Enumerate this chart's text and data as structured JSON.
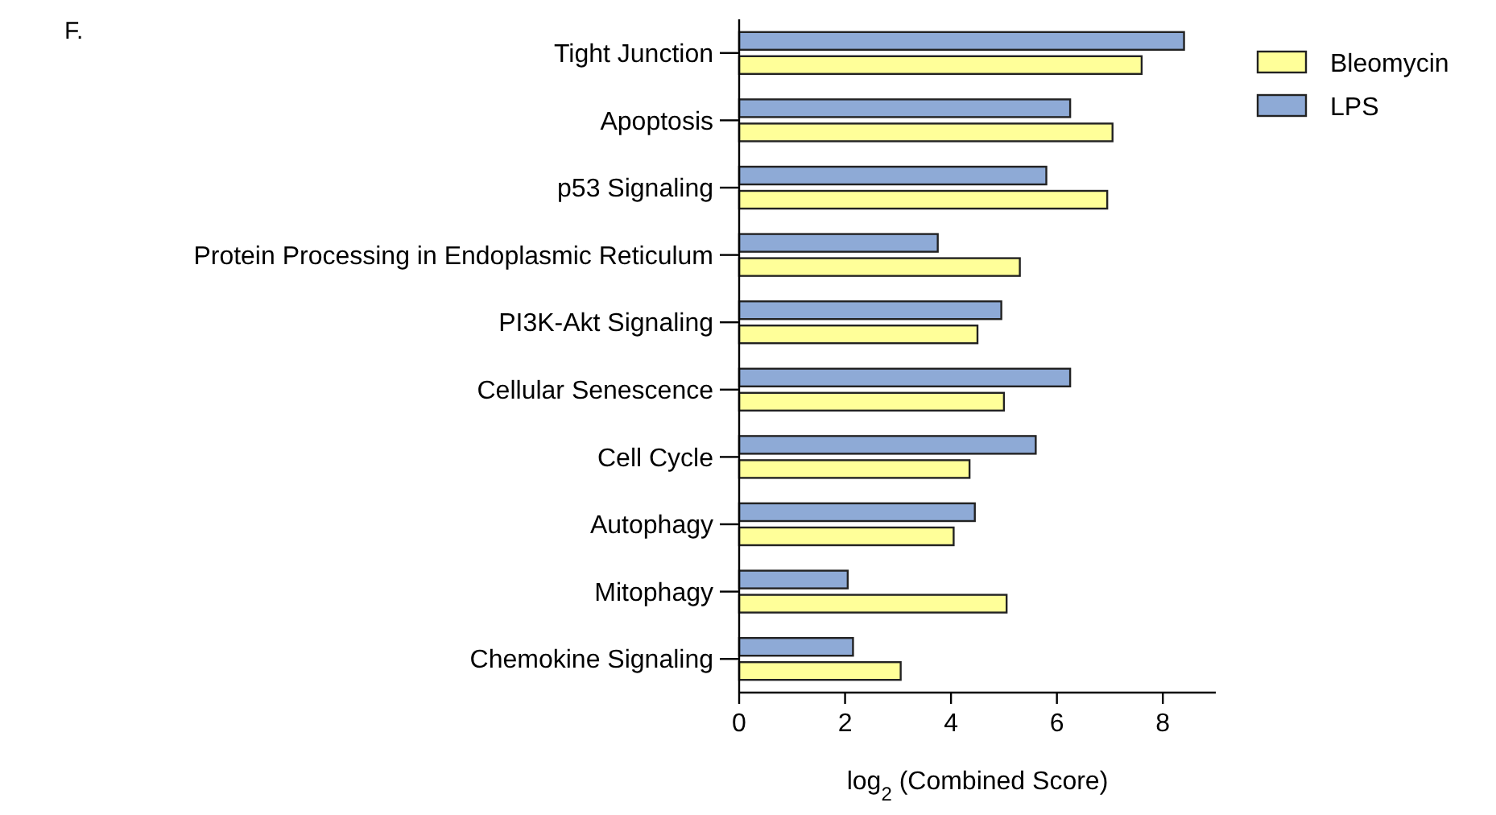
{
  "chart_data": {
    "type": "bar",
    "orientation": "horizontal",
    "xlabel": "log$_{2}$ (Combined Score)",
    "annotations": [
      "F."
    ],
    "categories": [
      "Tight Junction",
      "Apoptosis",
      "p53 Signaling",
      "Protein Processing in Endoplasmic Reticulum",
      "PI3K-Akt Signaling",
      "Cellular Senescence",
      "Cell Cycle",
      "Autophagy",
      "Mitophagy",
      "Chemokine Signaling"
    ],
    "series": [
      {
        "name": "Bleomycin",
        "color": "#ffff99",
        "values": [
          7.6,
          7.05,
          6.95,
          5.3,
          4.5,
          5.0,
          4.35,
          4.05,
          5.05,
          3.05
        ]
      },
      {
        "name": "LPS",
        "color": "#8eaad6",
        "values": [
          8.4,
          6.25,
          5.8,
          3.75,
          4.95,
          6.25,
          5.6,
          4.45,
          2.05,
          2.15
        ]
      }
    ],
    "xlim": [
      0,
      9
    ],
    "xticks": [
      0,
      2,
      4,
      6,
      8
    ],
    "grid": false,
    "legend": "right"
  }
}
